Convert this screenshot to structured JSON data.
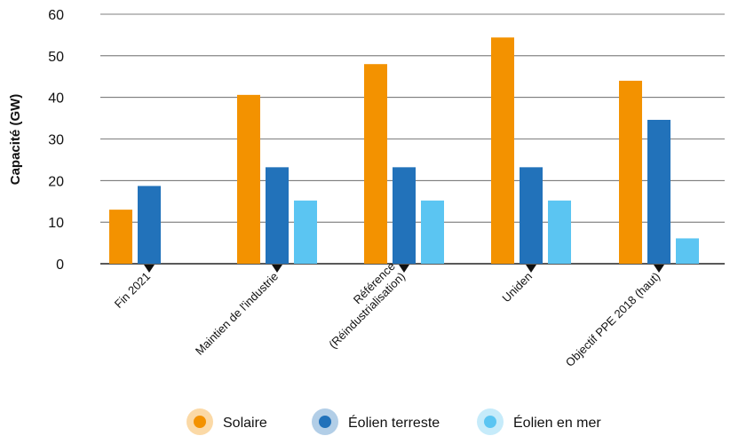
{
  "chart_data": {
    "type": "bar",
    "title": "",
    "xlabel": "",
    "ylabel": "Capacité (GW)",
    "ylim": [
      0,
      60
    ],
    "yticks": [
      "0",
      "10",
      "20",
      "30",
      "40",
      "50",
      "60"
    ],
    "grid": true,
    "legend_position": "bottom",
    "categories": [
      [
        "Fin 2021"
      ],
      [
        "Maintien de l'industrie"
      ],
      [
        "Référence",
        "(Réindustrialisation)"
      ],
      [
        "Uniden"
      ],
      [
        "Objectif PPE 2018 (haut)"
      ]
    ],
    "series": [
      {
        "name": "Solaire",
        "color": "#F39200",
        "values": [
          13,
          40.6,
          48,
          54.4,
          44
        ]
      },
      {
        "name": "Éolien terreste",
        "color": "#2272BA",
        "values": [
          18.7,
          23.2,
          23.2,
          23.2,
          34.6
        ]
      },
      {
        "name": "Éolien en mer",
        "color": "#5BC5F2",
        "values": [
          null,
          15.2,
          15.2,
          15.2,
          6.1
        ]
      }
    ]
  }
}
